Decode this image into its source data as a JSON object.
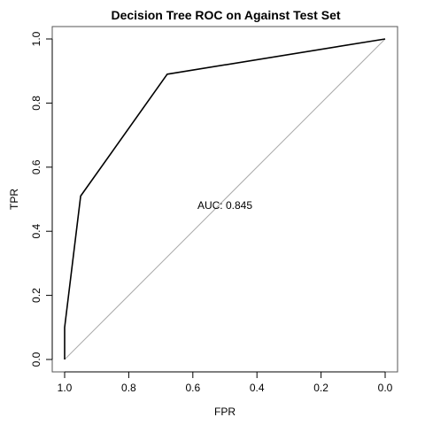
{
  "chart_data": {
    "type": "line",
    "title": "Decision Tree ROC on Against Test Set",
    "xlabel": "FPR",
    "ylabel": "TPR",
    "x_reversed": true,
    "xlim": [
      1.0,
      0.0
    ],
    "ylim": [
      0.0,
      1.0
    ],
    "x_ticks": [
      "1.0",
      "0.8",
      "0.6",
      "0.4",
      "0.2",
      "0.0"
    ],
    "y_ticks": [
      "0.0",
      "0.2",
      "0.4",
      "0.6",
      "0.8",
      "1.0"
    ],
    "grid": false,
    "series": [
      {
        "values": [
          {
            "x": 1.0,
            "y": 0.0
          },
          {
            "x": 1.0,
            "y": 0.1
          },
          {
            "x": 0.95,
            "y": 0.51
          },
          {
            "x": 0.68,
            "y": 0.89
          },
          {
            "x": 0.0,
            "y": 1.0
          }
        ],
        "color": "#000000"
      }
    ],
    "reference_line": {
      "from": {
        "x": 1.0,
        "y": 0.0
      },
      "to": {
        "x": 0.0,
        "y": 1.0
      },
      "color": "#aaaaaa"
    },
    "annotations": [
      {
        "text": "AUC: 0.845",
        "x": 0.5,
        "y": 0.48
      }
    ]
  }
}
